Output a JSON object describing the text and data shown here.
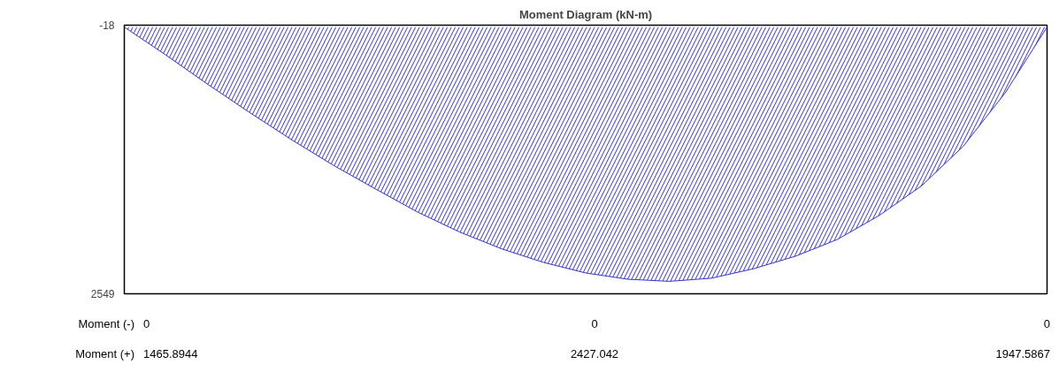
{
  "chart_data": {
    "type": "area",
    "title": "Moment Diagram (kN-m)",
    "categories": [
      null,
      null,
      null,
      null,
      null,
      null,
      null,
      null,
      null,
      null,
      null,
      null,
      null,
      null,
      null,
      null,
      null,
      null,
      null,
      null,
      null,
      null,
      null
    ],
    "series": [
      {
        "color": "#3333cc",
        "values": [
          0,
          270,
          550,
          820,
          1080,
          1325,
          1550,
          1770,
          1960,
          2120,
          2250,
          2350,
          2410,
          2430,
          2400,
          2310,
          2190,
          2030,
          1800,
          1520,
          1140,
          630,
          0
        ]
      }
    ],
    "ylim": [
      2549,
      -18
    ],
    "yticks": [
      -18,
      2549
    ],
    "tick_labels": "y",
    "grid": false,
    "annotations": [
      "Moment (-)",
      "0",
      "0",
      "0",
      "Moment (+)",
      "1465.8944",
      "2427.042",
      "1947.5867"
    ]
  }
}
